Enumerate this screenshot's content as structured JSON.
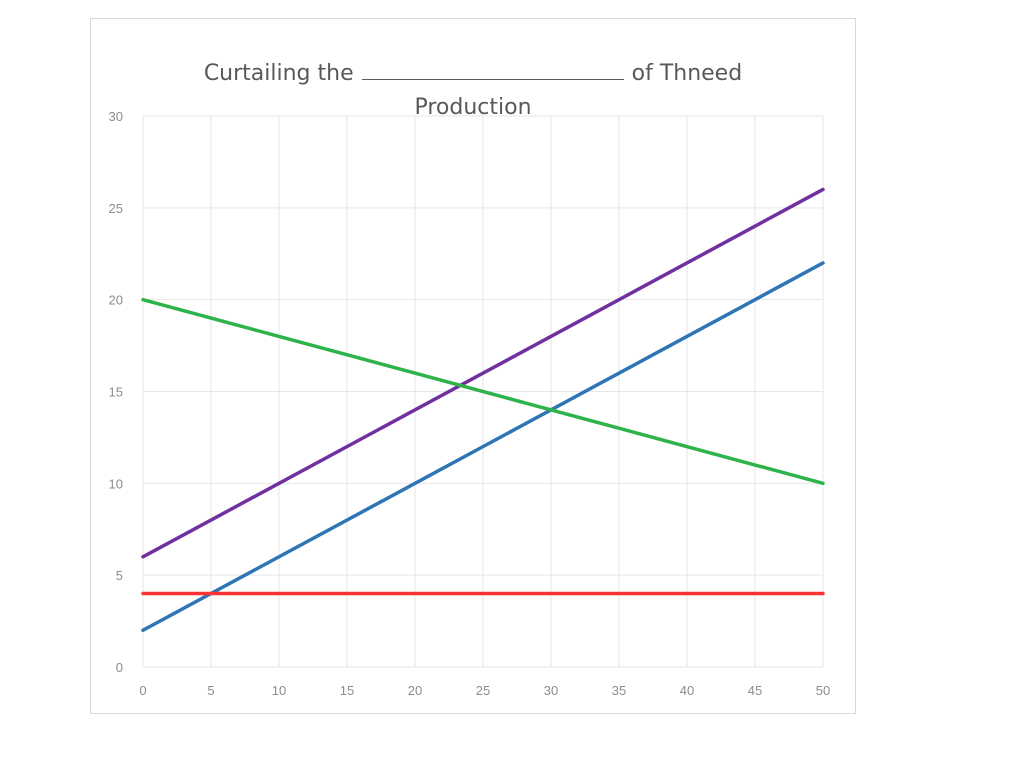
{
  "chart_data": {
    "type": "line",
    "title_prefix": "Curtailing the",
    "title_suffix": "of Thneed",
    "title_line2": "Production",
    "xlabel": "",
    "ylabel": "",
    "xlim": [
      0,
      50
    ],
    "ylim": [
      0,
      30
    ],
    "x_ticks": [
      0,
      5,
      10,
      15,
      20,
      25,
      30,
      35,
      40,
      45,
      50
    ],
    "y_ticks": [
      0,
      5,
      10,
      15,
      20,
      25,
      30
    ],
    "grid": true,
    "legend": "none",
    "series": [
      {
        "color": "#7030a0",
        "x": [
          0,
          50
        ],
        "values": [
          6,
          26
        ]
      },
      {
        "color": "#2e75b6",
        "x": [
          0,
          50
        ],
        "values": [
          2,
          22
        ]
      },
      {
        "color": "#2eb34a",
        "x": [
          0,
          50
        ],
        "values": [
          20,
          10
        ]
      },
      {
        "color": "#ff3333",
        "x": [
          0,
          50
        ],
        "values": [
          4,
          4
        ]
      }
    ]
  }
}
